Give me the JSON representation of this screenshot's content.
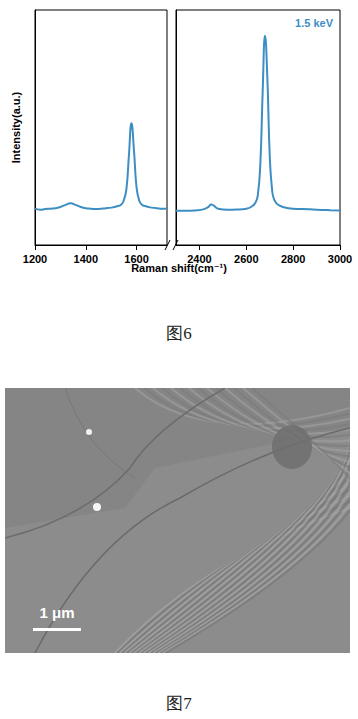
{
  "chart_data": {
    "type": "line",
    "xlabel": "Raman shift(cm⁻¹)",
    "ylabel": "Intensity(a.u.)",
    "ylim": [
      0,
      1.1
    ],
    "tick_labels": "x",
    "legend": "upper right",
    "series": [
      {
        "name": "1.5 keV",
        "color": "#3d8ec3"
      }
    ],
    "panels": [
      {
        "xlim": [
          1200,
          1720
        ],
        "xticks": [
          1200,
          1400,
          1600
        ],
        "x": [
          1200,
          1220,
          1240,
          1260,
          1280,
          1300,
          1320,
          1340,
          1360,
          1380,
          1400,
          1420,
          1440,
          1460,
          1480,
          1500,
          1520,
          1540,
          1550,
          1560,
          1570,
          1580,
          1590,
          1600,
          1610,
          1620,
          1640,
          1660,
          1680,
          1700,
          1720
        ],
        "values": [
          0.17,
          0.165,
          0.168,
          0.17,
          0.172,
          0.178,
          0.188,
          0.195,
          0.188,
          0.178,
          0.172,
          0.17,
          0.168,
          0.17,
          0.172,
          0.175,
          0.18,
          0.19,
          0.21,
          0.26,
          0.42,
          0.57,
          0.44,
          0.27,
          0.21,
          0.19,
          0.18,
          0.175,
          0.172,
          0.17,
          0.17
        ]
      },
      {
        "xlim": [
          2300,
          3000
        ],
        "xticks": [
          2400,
          2600,
          2800,
          3000
        ],
        "x": [
          2300,
          2340,
          2380,
          2420,
          2440,
          2450,
          2460,
          2480,
          2520,
          2560,
          2600,
          2620,
          2640,
          2650,
          2660,
          2670,
          2680,
          2690,
          2700,
          2710,
          2720,
          2740,
          2780,
          2840,
          2900,
          2960,
          3000
        ],
        "values": [
          0.16,
          0.16,
          0.162,
          0.168,
          0.18,
          0.19,
          0.185,
          0.17,
          0.165,
          0.166,
          0.17,
          0.178,
          0.2,
          0.24,
          0.38,
          0.72,
          0.98,
          0.78,
          0.42,
          0.26,
          0.21,
          0.185,
          0.172,
          0.168,
          0.165,
          0.163,
          0.162
        ]
      }
    ]
  },
  "captions": [
    "图6",
    "图7"
  ],
  "micrograph": {
    "scale_bar": "1 μm"
  }
}
